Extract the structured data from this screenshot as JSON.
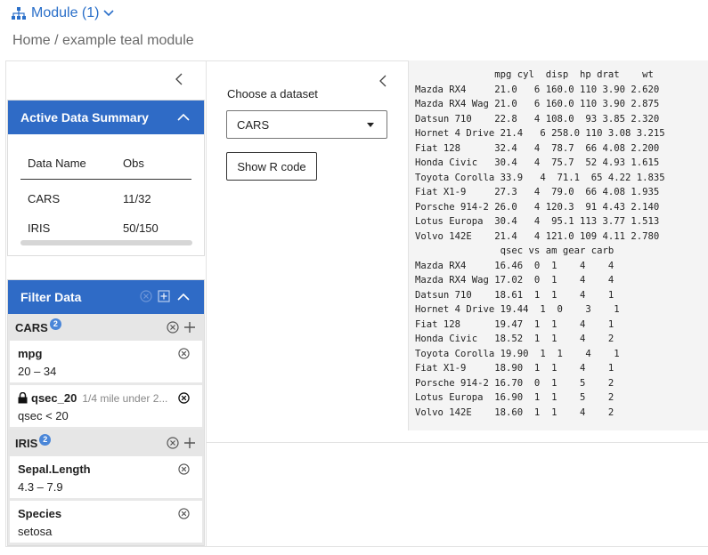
{
  "header": {
    "module_label": "Module (1)",
    "breadcrumb": "Home / example teal module"
  },
  "active_data_summary": {
    "title": "Active Data Summary",
    "columns": [
      "Data Name",
      "Obs"
    ],
    "rows": [
      {
        "name": "CARS",
        "obs": "11/32"
      },
      {
        "name": "IRIS",
        "obs": "50/150"
      }
    ]
  },
  "filter_data": {
    "title": "Filter Data",
    "datasets": [
      {
        "name": "CARS",
        "count": "2",
        "filters": [
          {
            "name": "mpg",
            "value": "20 – 34",
            "locked": false,
            "desc": ""
          },
          {
            "name": "qsec_20",
            "value": "qsec < 20",
            "locked": true,
            "desc": "1/4 mile under 2..."
          }
        ]
      },
      {
        "name": "IRIS",
        "count": "2",
        "filters": [
          {
            "name": "Sepal.Length",
            "value": "4.3 – 7.9",
            "locked": false,
            "desc": ""
          },
          {
            "name": "Species",
            "value": "setosa",
            "locked": false,
            "desc": ""
          }
        ]
      }
    ]
  },
  "encoding": {
    "label": "Choose a dataset",
    "selected": "CARS",
    "show_r_code": "Show R code"
  },
  "output": {
    "lines": [
      "              mpg cyl  disp  hp drat    wt",
      "Mazda RX4     21.0   6 160.0 110 3.90 2.620",
      "Mazda RX4 Wag 21.0   6 160.0 110 3.90 2.875",
      "Datsun 710    22.8   4 108.0  93 3.85 2.320",
      "Hornet 4 Drive 21.4   6 258.0 110 3.08 3.215",
      "Fiat 128      32.4   4  78.7  66 4.08 2.200",
      "Honda Civic   30.4   4  75.7  52 4.93 1.615",
      "Toyota Corolla 33.9   4  71.1  65 4.22 1.835",
      "Fiat X1-9     27.3   4  79.0  66 4.08 1.935",
      "Porsche 914-2 26.0   4 120.3  91 4.43 2.140",
      "Lotus Europa  30.4   4  95.1 113 3.77 1.513",
      "Volvo 142E    21.4   4 121.0 109 4.11 2.780",
      "               qsec vs am gear carb",
      "Mazda RX4     16.46  0  1    4    4",
      "Mazda RX4 Wag 17.02  0  1    4    4",
      "Datsun 710    18.61  1  1    4    1",
      "Hornet 4 Drive 19.44  1  0    3    1",
      "Fiat 128      19.47  1  1    4    1",
      "Honda Civic   18.52  1  1    4    2",
      "Toyota Corolla 19.90  1  1    4    1",
      "Fiat X1-9     18.90  1  1    4    1",
      "Porsche 914-2 16.70  0  1    5    2",
      "Lotus Europa  16.90  1  1    5    2",
      "Volvo 142E    18.60  1  1    4    2"
    ]
  }
}
